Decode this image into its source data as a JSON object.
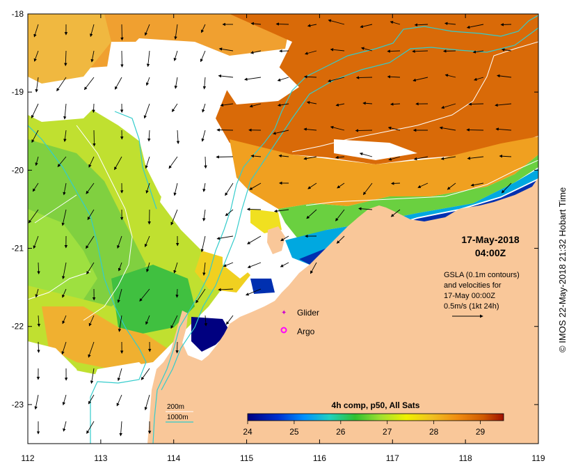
{
  "map": {
    "annotation": {
      "date": "17-May-2018",
      "time": "04:00Z",
      "gsla_lines": [
        "GSLA (0.1m contours)",
        "and velocities for",
        "17-May 00:00Z",
        "0.5m/s (1kt 24h)"
      ]
    },
    "legend": {
      "glider": "Glider",
      "argo": "Argo",
      "isobath_200": "200m",
      "isobath_1000": "1000m"
    },
    "colorbar": {
      "title": "4h comp, p50, All Sats",
      "min": 24,
      "max": 29.5,
      "ticks": [
        "24",
        "25",
        "26",
        "27",
        "28",
        "29"
      ]
    },
    "axes": {
      "x_ticks": [
        "112",
        "113",
        "114",
        "115",
        "116",
        "117",
        "118",
        "119"
      ],
      "y_ticks": [
        "-18",
        "-19",
        "-20",
        "-21",
        "-22",
        "-23"
      ],
      "lon_range": [
        112,
        119
      ],
      "lat_range": [
        -23.5,
        -18
      ]
    },
    "credit": "© IMOS 22-May-2018 21:32 Hobart Time",
    "colors": {
      "land": "#f9c799",
      "isobath": "#33cccc",
      "gsla_contour": "#ffffff"
    }
  }
}
